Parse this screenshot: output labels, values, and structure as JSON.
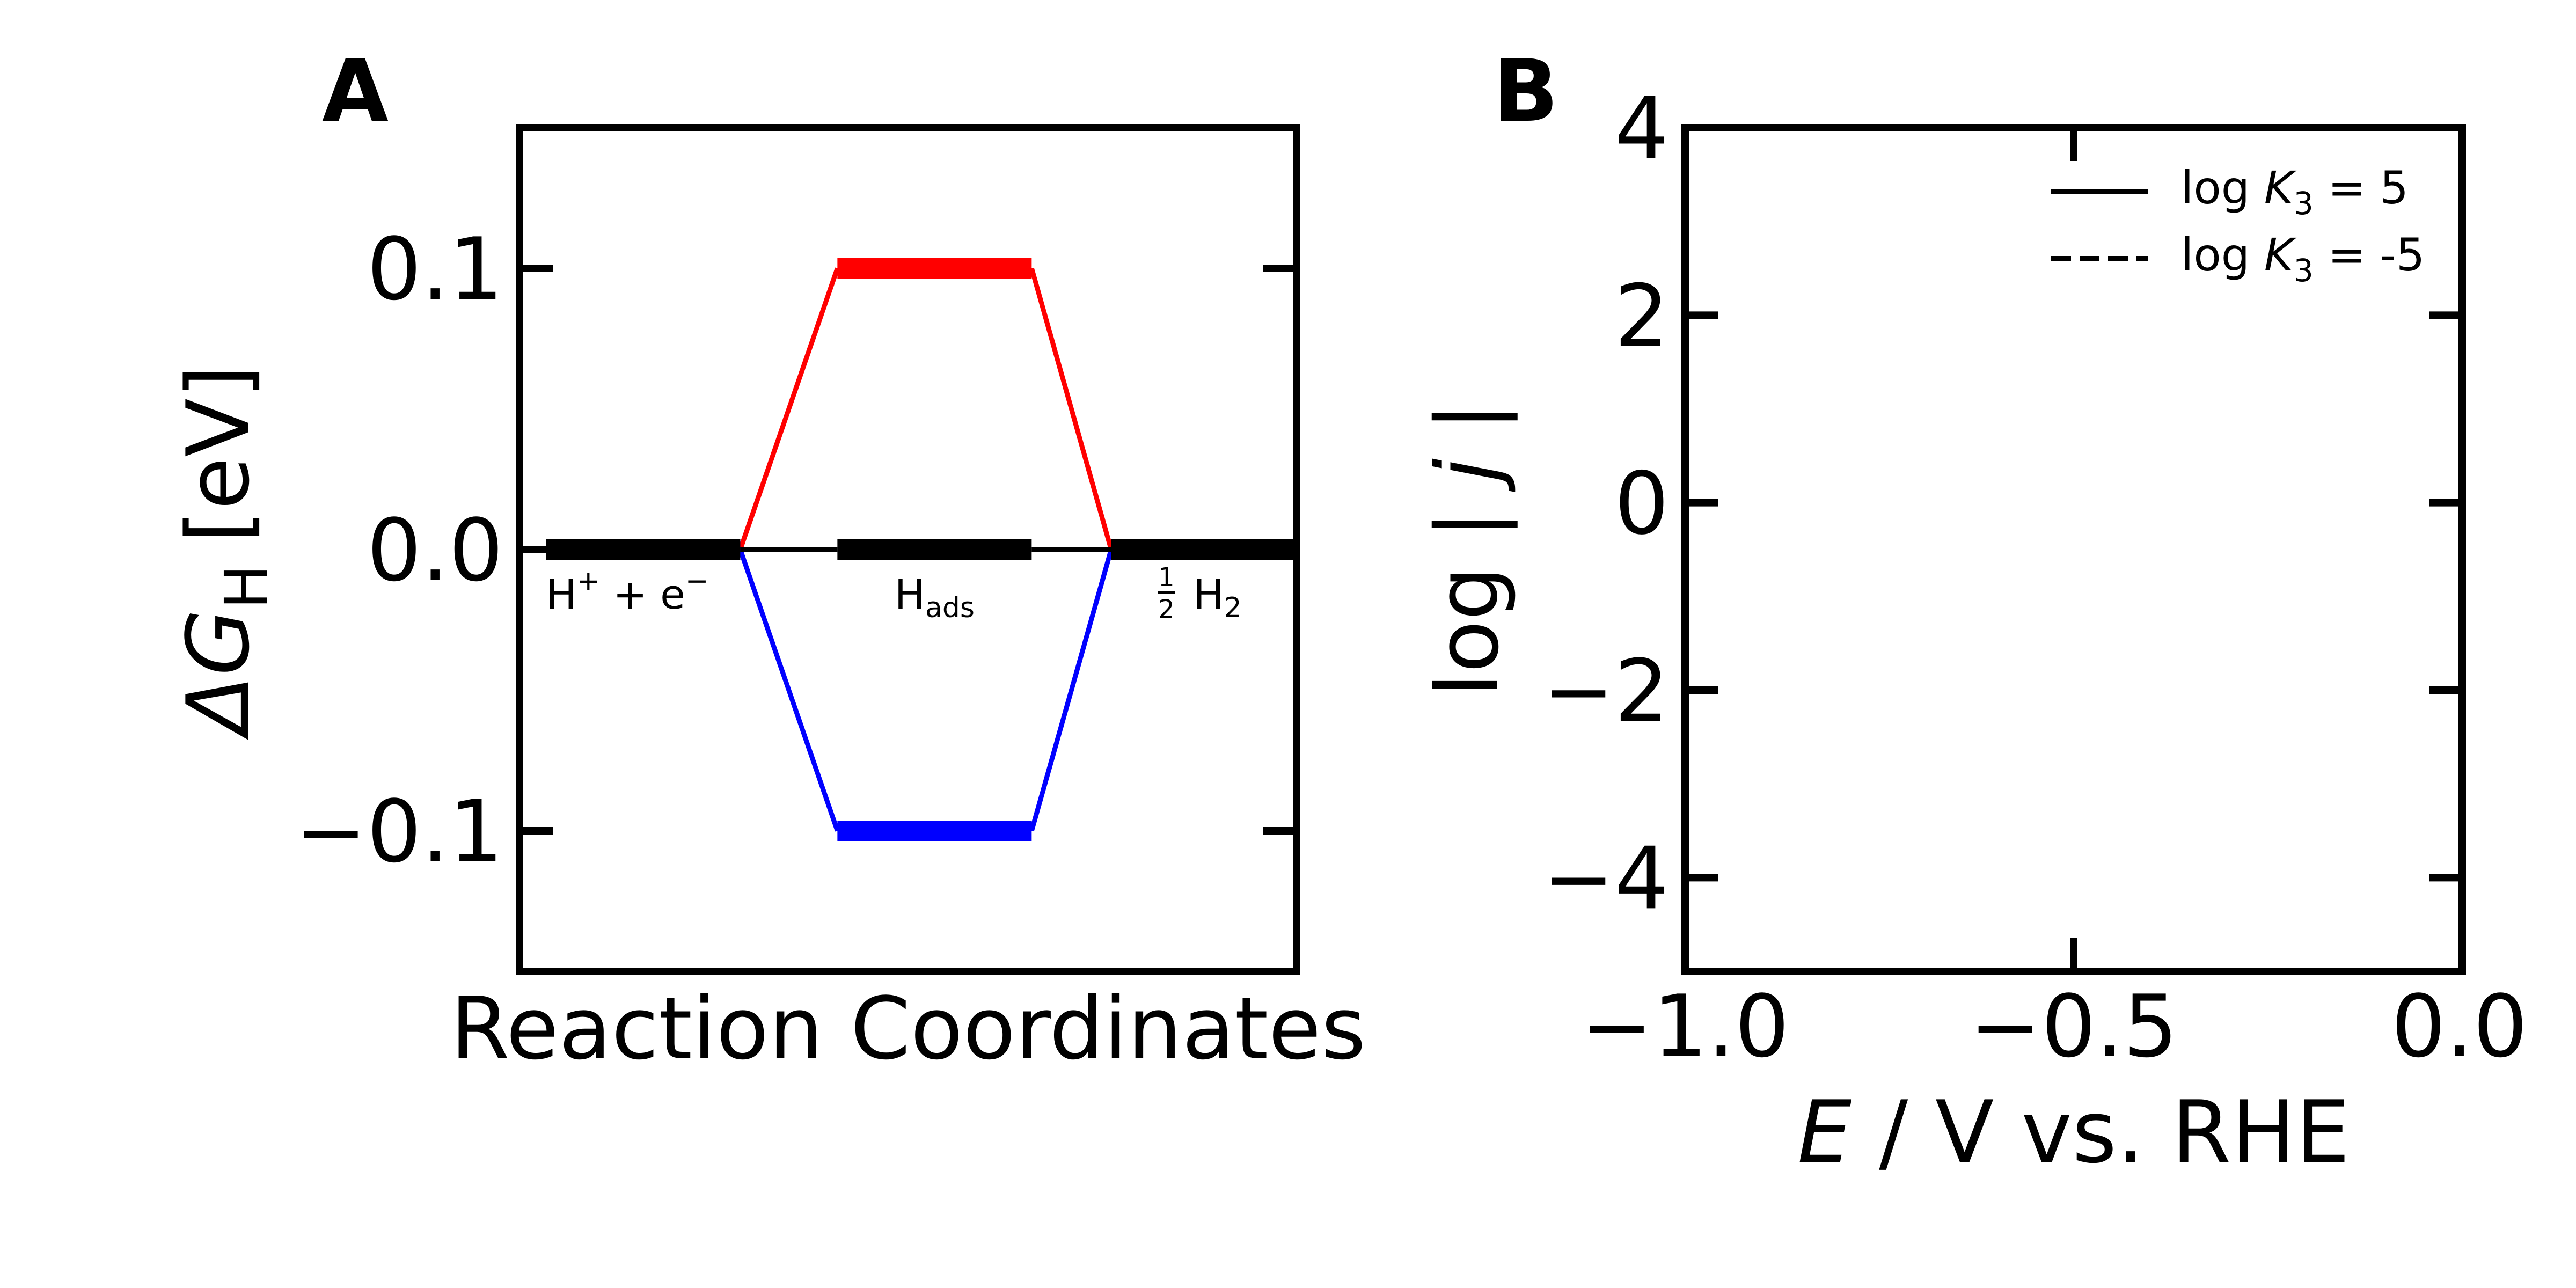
{
  "chart_data": [
    {
      "panel": "A",
      "type": "line",
      "xlabel": "Reaction Coordinates",
      "ylabel": "ΔG",
      "ylabel_sub": "H",
      "ylabel_unit": "[eV]",
      "ylim": [
        -0.15,
        0.15
      ],
      "yticks": [
        -0.1,
        0.0,
        0.1
      ],
      "ytick_labels": [
        "−0.1",
        "0.0",
        "0.1"
      ],
      "xlim": [
        0,
        4.4
      ],
      "x_states": [
        {
          "x0": 0.15,
          "x1": 1.25,
          "label_main": "H",
          "label_sup1": "+",
          "label_mid": " + e",
          "label_sup2": "−",
          "label_pos": 0.15
        },
        {
          "x0": 1.8,
          "x1": 2.9,
          "label_main": "H",
          "label_sub": "ads",
          "label_pos": 2.35
        },
        {
          "x0": 3.35,
          "x1": 4.45,
          "label_frac_num": "1",
          "label_frac_den": "2",
          "label_main": "H",
          "label_sub": "2",
          "label_pos": 3.9
        }
      ],
      "series": [
        {
          "color": "#ff0000",
          "y_states": [
            0.0,
            0.1,
            0.0
          ]
        },
        {
          "color": "#0000ff",
          "y_states": [
            0.0,
            -0.1,
            0.0
          ]
        },
        {
          "color": "#000000",
          "y_states": [
            0.0,
            0.0,
            0.0
          ]
        }
      ]
    },
    {
      "panel": "B",
      "type": "line",
      "xlabel_italic": "E",
      "xlabel_rest": " / V vs. RHE",
      "ylabel_pre": "log | ",
      "ylabel_italic": "j",
      "ylabel_post": " |",
      "xlim": [
        -1.0,
        0.0
      ],
      "xticks": [
        -1.0,
        -0.5,
        0.0
      ],
      "xtick_labels": [
        "−1.0",
        "−0.5",
        "0.0"
      ],
      "ylim": [
        -5,
        4
      ],
      "yticks": [
        -4,
        -2,
        0,
        2,
        4
      ],
      "ytick_labels": [
        "−4",
        "−2",
        "0",
        "2",
        "4"
      ],
      "legend_position": "top-right",
      "legend": [
        {
          "style": "solid",
          "pre": "log ",
          "italic": "K",
          "sub": "3",
          "post": " = 5"
        },
        {
          "style": "dashed",
          "pre": "log ",
          "italic": "K",
          "sub": "3",
          "post": " = -5"
        }
      ],
      "series": []
    }
  ]
}
